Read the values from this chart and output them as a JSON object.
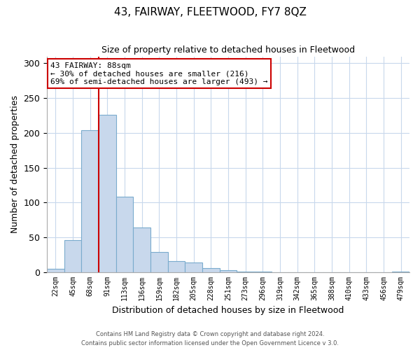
{
  "title": "43, FAIRWAY, FLEETWOOD, FY7 8QZ",
  "subtitle": "Size of property relative to detached houses in Fleetwood",
  "xlabel": "Distribution of detached houses by size in Fleetwood",
  "ylabel": "Number of detached properties",
  "bar_values": [
    5,
    46,
    204,
    226,
    108,
    64,
    29,
    16,
    14,
    6,
    3,
    1,
    1,
    0,
    0,
    0,
    0,
    0,
    0,
    0,
    1
  ],
  "bar_labels": [
    "22sqm",
    "45sqm",
    "68sqm",
    "91sqm",
    "113sqm",
    "136sqm",
    "159sqm",
    "182sqm",
    "205sqm",
    "228sqm",
    "251sqm",
    "273sqm",
    "296sqm",
    "319sqm",
    "342sqm",
    "365sqm",
    "388sqm",
    "410sqm",
    "433sqm",
    "456sqm",
    "479sqm"
  ],
  "bar_color": "#c8d8ec",
  "bar_edge_color": "#7aabcd",
  "vline_color": "#cc0000",
  "annotation_title": "43 FAIRWAY: 88sqm",
  "annotation_line1": "← 30% of detached houses are smaller (216)",
  "annotation_line2": "69% of semi-detached houses are larger (493) →",
  "annotation_box_color": "#ffffff",
  "annotation_box_edge": "#cc0000",
  "ylim": [
    0,
    310
  ],
  "yticks": [
    0,
    50,
    100,
    150,
    200,
    250,
    300
  ],
  "grid_color": "#c8d8ec",
  "footer1": "Contains HM Land Registry data © Crown copyright and database right 2024.",
  "footer2": "Contains public sector information licensed under the Open Government Licence v 3.0."
}
